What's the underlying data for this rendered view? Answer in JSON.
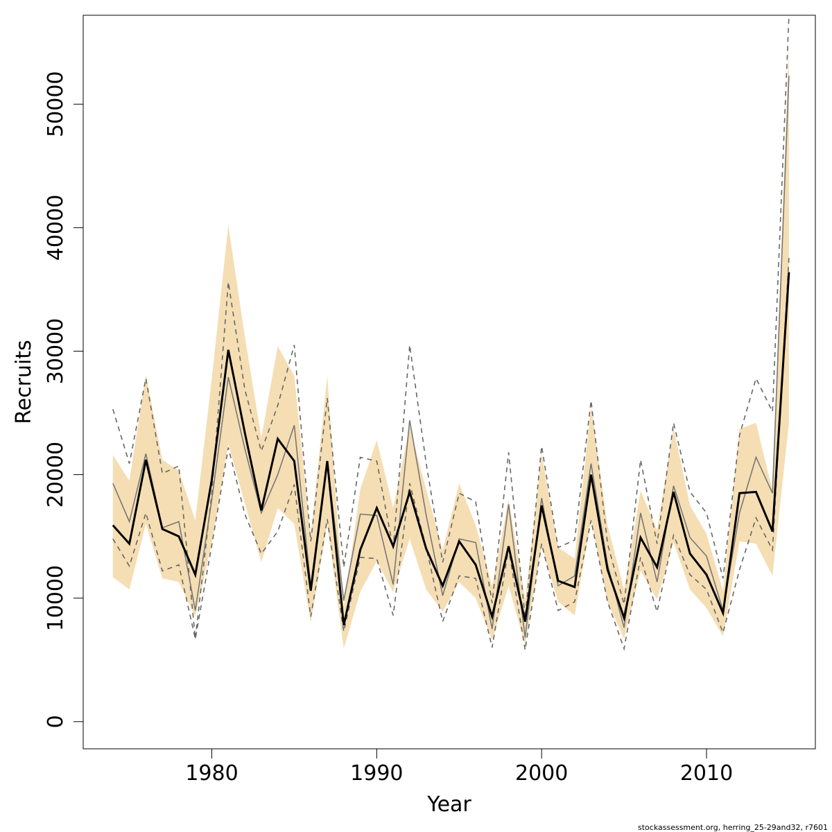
{
  "chart_data": {
    "type": "line",
    "xlabel": "Year",
    "ylabel": "Recruits",
    "xlim": [
      1972.4,
      1975.0
    ],
    "ylim": [
      -2200,
      57200
    ],
    "x_ticks": [
      1980,
      1990,
      2000,
      2010
    ],
    "y_ticks": [
      0,
      10000,
      20000,
      30000,
      40000,
      50000
    ],
    "grid": false,
    "legend": "none",
    "x": [
      1974,
      1975,
      1976,
      1977,
      1978,
      1979,
      1980,
      1981,
      1982,
      1983,
      1984,
      1985,
      1986,
      1987,
      1988,
      1989,
      1990,
      1991,
      1992,
      1993,
      1994,
      1995,
      1996,
      1997,
      1998,
      1999,
      2000,
      2001,
      2002,
      2003,
      2004,
      2005,
      2006,
      2007,
      2008,
      2009,
      2010,
      2011,
      2012,
      2013,
      2014,
      2015
    ],
    "band": {
      "color": "#F5DEB3",
      "lower": [
        11700,
        10700,
        16000,
        11600,
        11300,
        8500,
        14400,
        22500,
        17700,
        12900,
        17300,
        16000,
        8000,
        16000,
        5900,
        10500,
        13000,
        10500,
        14800,
        10700,
        8900,
        11300,
        10000,
        6600,
        11000,
        6200,
        14200,
        9700,
        8600,
        16300,
        9700,
        6700,
        12200,
        9900,
        14500,
        10700,
        9200,
        6900,
        14600,
        14400,
        11800,
        24200
      ],
      "upper": [
        21600,
        19500,
        28100,
        21200,
        20300,
        16300,
        27800,
        40200,
        31200,
        23000,
        30400,
        28000,
        15000,
        28000,
        9300,
        18800,
        22800,
        17300,
        23900,
        18800,
        13900,
        19300,
        15900,
        11000,
        18000,
        9900,
        21700,
        14100,
        13200,
        25500,
        15900,
        10700,
        18700,
        15500,
        23800,
        17500,
        15200,
        10600,
        23700,
        24200,
        18700,
        55000
      ]
    },
    "series": [
      {
        "color": "#000000",
        "style": "solid-bold",
        "values": [
          15900,
          14400,
          21200,
          15600,
          15000,
          11900,
          19600,
          30100,
          23400,
          17100,
          22900,
          21100,
          10600,
          21100,
          7800,
          13900,
          17300,
          14200,
          18600,
          14000,
          11000,
          14600,
          12700,
          8500,
          14200,
          8100,
          17500,
          11400,
          10900,
          20000,
          12300,
          8400,
          14900,
          12500,
          18600,
          13600,
          11900,
          8800,
          18500,
          18600,
          15400,
          36400
        ]
      },
      {
        "color": "#777777",
        "style": "solid-thin",
        "values": [
          19300,
          16200,
          21700,
          15700,
          16200,
          9000,
          18000,
          27900,
          22100,
          16900,
          20000,
          24000,
          11000,
          21100,
          9800,
          16800,
          16700,
          11100,
          24400,
          16700,
          10200,
          14800,
          14500,
          7500,
          17600,
          6800,
          18100,
          11000,
          11800,
          20900,
          12700,
          7600,
          16900,
          11300,
          19100,
          14900,
          13400,
          9000,
          16900,
          21400,
          18500,
          52300
        ]
      },
      {
        "color": "#666666",
        "style": "dashed",
        "values": [
          25300,
          20900,
          27800,
          20100,
          20700,
          6700,
          18500,
          35600,
          26900,
          21900,
          25600,
          30500,
          14600,
          26200,
          12500,
          21400,
          21100,
          14000,
          30500,
          20900,
          12900,
          18500,
          17800,
          9600,
          21800,
          8400,
          22300,
          14100,
          14700,
          26000,
          14400,
          9500,
          21200,
          14400,
          24200,
          18600,
          16900,
          11600,
          23200,
          27800,
          25100,
          62000
        ]
      },
      {
        "color": "#666666",
        "style": "dashed",
        "values": [
          14800,
          12600,
          16900,
          12200,
          12700,
          6700,
          14300,
          22200,
          16800,
          13600,
          15400,
          19200,
          8500,
          16400,
          7300,
          13300,
          13200,
          8600,
          19300,
          14100,
          8100,
          11800,
          11600,
          6000,
          14000,
          5800,
          14400,
          9000,
          9700,
          16300,
          9700,
          5900,
          13300,
          8900,
          15100,
          11900,
          10700,
          7200,
          12300,
          16500,
          13900,
          37600
        ]
      }
    ],
    "caption": "stockassessment.org, herring_25-29and32, r7601"
  }
}
